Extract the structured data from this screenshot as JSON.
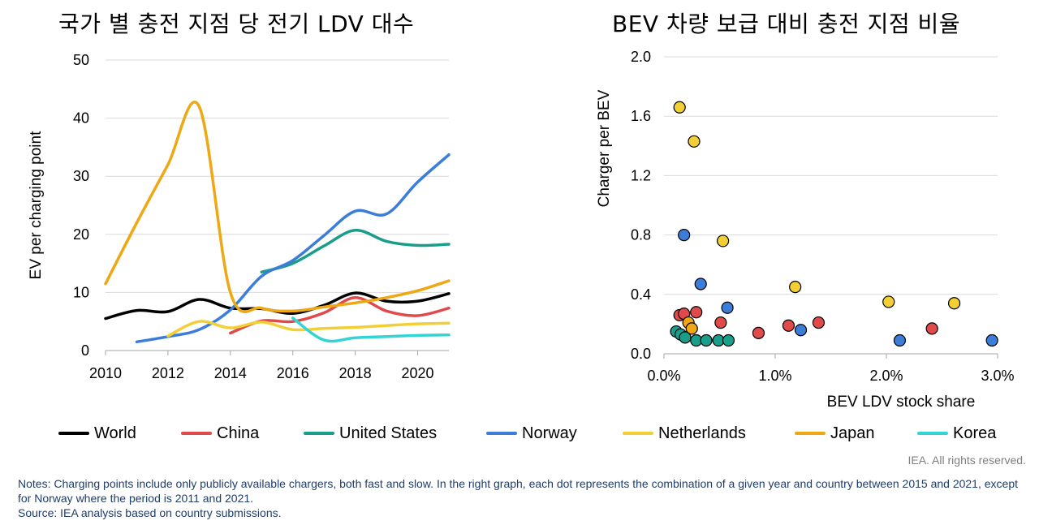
{
  "left_chart": {
    "title": "국가 별 충전 지점 당 전기 LDV 대수",
    "chart_data": {
      "type": "line",
      "title": "국가 별 충전 지점 당 전기 LDV 대수",
      "xlabel": "",
      "ylabel": "EV per charging point",
      "xlim": [
        2010,
        2021
      ],
      "ylim": [
        0,
        50
      ],
      "x_ticks": [
        "2010",
        "2012",
        "2014",
        "2016",
        "2018",
        "2020"
      ],
      "y_ticks": [
        "0",
        "10",
        "20",
        "30",
        "40",
        "50"
      ],
      "series": [
        {
          "name": "World",
          "color": "#000000",
          "x": [
            2010,
            2011,
            2012,
            2013,
            2014,
            2015,
            2016,
            2017,
            2018,
            2019,
            2020,
            2021
          ],
          "values": [
            5.5,
            6.9,
            6.7,
            8.8,
            7.3,
            7.2,
            6.4,
            7.8,
            9.9,
            8.5,
            8.5,
            9.8
          ]
        },
        {
          "name": "China",
          "color": "#e04a4a",
          "x": [
            2014,
            2015,
            2016,
            2017,
            2018,
            2019,
            2020,
            2021
          ],
          "values": [
            3.0,
            5.1,
            5.0,
            6.5,
            9.1,
            6.8,
            6.0,
            7.3
          ]
        },
        {
          "name": "United States",
          "color": "#1a9e8c",
          "x": [
            2015,
            2016,
            2017,
            2018,
            2019,
            2020,
            2021
          ],
          "values": [
            13.5,
            15.0,
            18.0,
            20.7,
            18.8,
            18.1,
            18.3
          ]
        },
        {
          "name": "Norway",
          "color": "#3b7dd8",
          "x": [
            2011,
            2012,
            2013,
            2014,
            2015,
            2016,
            2017,
            2018,
            2019,
            2020,
            2021
          ],
          "values": [
            1.5,
            2.4,
            3.6,
            7.0,
            12.8,
            15.5,
            19.8,
            24.0,
            23.5,
            29.0,
            33.7
          ]
        },
        {
          "name": "Netherlands",
          "color": "#f2d035",
          "x": [
            2012,
            2013,
            2014,
            2015,
            2016,
            2017,
            2018,
            2019,
            2020,
            2021
          ],
          "values": [
            2.5,
            5.0,
            3.9,
            4.9,
            3.6,
            3.8,
            4.0,
            4.3,
            4.6,
            4.7
          ]
        },
        {
          "name": "Japan",
          "color": "#eea814",
          "x": [
            2010,
            2011,
            2012,
            2013,
            2014,
            2015,
            2016,
            2017,
            2018,
            2019,
            2020,
            2021
          ],
          "values": [
            11.5,
            22.0,
            32.0,
            42.0,
            10.0,
            7.3,
            6.8,
            7.5,
            8.2,
            9.1,
            10.3,
            12.0
          ]
        },
        {
          "name": "Korea",
          "color": "#35d4d4",
          "x": [
            2016,
            2017,
            2018,
            2019,
            2020,
            2021
          ],
          "values": [
            5.6,
            1.8,
            2.2,
            2.4,
            2.6,
            2.7
          ]
        }
      ]
    }
  },
  "right_chart": {
    "title": "BEV 차량 보급 대비 충전 지점 비율",
    "chart_data": {
      "type": "scatter",
      "title": "BEV 차량 보급 대비 충전 지점 비율",
      "xlabel": "BEV LDV stock share",
      "ylabel": "Charger per BEV",
      "xlim": [
        0,
        3.0
      ],
      "ylim": [
        0,
        2.0
      ],
      "x_ticks": [
        "0.0%",
        "1.0%",
        "2.0%",
        "3.0%"
      ],
      "y_ticks": [
        "0.0",
        "0.4",
        "0.8",
        "1.2",
        "1.6",
        "2.0"
      ],
      "series": [
        {
          "name": "Netherlands",
          "color": "#f2d035",
          "points": [
            [
              0.14,
              1.66
            ],
            [
              0.27,
              1.43
            ],
            [
              0.53,
              0.76
            ],
            [
              1.18,
              0.45
            ],
            [
              2.02,
              0.35
            ],
            [
              2.61,
              0.34
            ]
          ]
        },
        {
          "name": "Norway",
          "color": "#3b7dd8",
          "points": [
            [
              0.18,
              0.8
            ],
            [
              0.33,
              0.47
            ],
            [
              0.57,
              0.31
            ],
            [
              1.23,
              0.16
            ],
            [
              2.12,
              0.09
            ],
            [
              2.95,
              0.09
            ]
          ]
        },
        {
          "name": "China",
          "color": "#e04a4a",
          "points": [
            [
              0.14,
              0.26
            ],
            [
              0.18,
              0.27
            ],
            [
              0.29,
              0.28
            ],
            [
              0.51,
              0.21
            ],
            [
              0.85,
              0.14
            ],
            [
              1.12,
              0.19
            ],
            [
              1.39,
              0.21
            ],
            [
              2.41,
              0.17
            ]
          ]
        },
        {
          "name": "Japan",
          "color": "#eea814",
          "points": [
            [
              0.22,
              0.21
            ],
            [
              0.25,
              0.17
            ]
          ]
        },
        {
          "name": "United States",
          "color": "#1a9e8c",
          "points": [
            [
              0.11,
              0.15
            ],
            [
              0.15,
              0.13
            ],
            [
              0.19,
              0.11
            ],
            [
              0.29,
              0.09
            ],
            [
              0.38,
              0.09
            ],
            [
              0.49,
              0.09
            ],
            [
              0.58,
              0.09
            ]
          ]
        }
      ]
    }
  },
  "legend": [
    {
      "name": "World",
      "color": "#000000"
    },
    {
      "name": "China",
      "color": "#e04a4a"
    },
    {
      "name": "United States",
      "color": "#1a9e8c"
    },
    {
      "name": "Norway",
      "color": "#3b7dd8"
    },
    {
      "name": "Netherlands",
      "color": "#f2d035"
    },
    {
      "name": "Japan",
      "color": "#eea814"
    },
    {
      "name": "Korea",
      "color": "#35d4d4"
    }
  ],
  "rights": "IEA. All rights reserved.",
  "notes": "Notes: Charging points include only publicly available chargers, both fast and slow. In the right graph, each dot represents the combination of a given year and country between 2015 and 2021, except for Norway where the period is 2011 and 2021.",
  "source": "Source: IEA analysis based on country submissions."
}
